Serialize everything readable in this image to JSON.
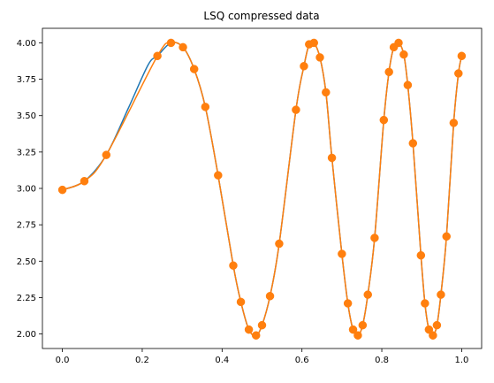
{
  "chart_data": {
    "type": "line",
    "title": "LSQ compressed data",
    "xlabel": "",
    "ylabel": "",
    "xlim": [
      -0.05,
      1.05
    ],
    "ylim": [
      1.9,
      4.1
    ],
    "x_ticks": [
      0.0,
      0.2,
      0.4,
      0.6,
      0.8,
      1.0
    ],
    "x_tick_labels": [
      "0.0",
      "0.2",
      "0.4",
      "0.6",
      "0.8",
      "1.0"
    ],
    "y_ticks": [
      2.0,
      2.25,
      2.5,
      2.75,
      3.0,
      3.25,
      3.5,
      3.75,
      4.0
    ],
    "y_tick_labels": [
      "2.00",
      "2.25",
      "2.50",
      "2.75",
      "3.00",
      "3.25",
      "3.50",
      "3.75",
      "4.00"
    ],
    "grid": false,
    "legend": "none",
    "series": [
      {
        "style": "line",
        "color": "#1f77b4",
        "x": [
          0.0,
          0.055,
          0.11,
          0.165,
          0.215,
          0.238,
          0.272,
          0.302,
          0.33,
          0.358,
          0.39,
          0.428,
          0.447,
          0.467,
          0.485,
          0.5,
          0.52,
          0.543,
          0.585,
          0.605,
          0.618,
          0.63,
          0.645,
          0.66,
          0.675,
          0.7,
          0.715,
          0.728,
          0.74,
          0.752,
          0.765,
          0.782,
          0.805,
          0.818,
          0.83,
          0.842,
          0.855,
          0.865,
          0.878,
          0.898,
          0.908,
          0.918,
          0.928,
          0.938,
          0.948,
          0.962,
          0.98,
          0.992,
          1.0
        ],
        "y": [
          2.99,
          3.05,
          3.23,
          3.55,
          3.85,
          3.91,
          4.0,
          3.97,
          3.82,
          3.56,
          3.09,
          2.47,
          2.22,
          2.03,
          1.99,
          2.06,
          2.26,
          2.62,
          3.54,
          3.84,
          3.99,
          4.0,
          3.9,
          3.66,
          3.21,
          2.55,
          2.21,
          2.03,
          1.99,
          2.06,
          2.27,
          2.66,
          3.47,
          3.8,
          3.97,
          4.0,
          3.92,
          3.71,
          3.31,
          2.54,
          2.21,
          2.03,
          1.99,
          2.06,
          2.27,
          2.67,
          3.45,
          3.79,
          3.91
        ]
      },
      {
        "style": "line+markers",
        "color": "#ff7f0e",
        "x": [
          0.0,
          0.055,
          0.11,
          0.238,
          0.272,
          0.302,
          0.33,
          0.358,
          0.39,
          0.428,
          0.447,
          0.467,
          0.485,
          0.5,
          0.52,
          0.543,
          0.585,
          0.605,
          0.618,
          0.63,
          0.645,
          0.66,
          0.675,
          0.7,
          0.715,
          0.728,
          0.74,
          0.752,
          0.765,
          0.782,
          0.805,
          0.818,
          0.83,
          0.842,
          0.855,
          0.865,
          0.878,
          0.898,
          0.908,
          0.918,
          0.928,
          0.938,
          0.948,
          0.962,
          0.98,
          0.992,
          1.0
        ],
        "y": [
          2.99,
          3.05,
          3.23,
          3.91,
          4.0,
          3.97,
          3.82,
          3.56,
          3.09,
          2.47,
          2.22,
          2.03,
          1.99,
          2.06,
          2.26,
          2.62,
          3.54,
          3.84,
          3.99,
          4.0,
          3.9,
          3.66,
          3.21,
          2.55,
          2.21,
          2.03,
          1.99,
          2.06,
          2.27,
          2.66,
          3.47,
          3.8,
          3.97,
          4.0,
          3.92,
          3.71,
          3.31,
          2.54,
          2.21,
          2.03,
          1.99,
          2.06,
          2.27,
          2.67,
          3.45,
          3.79,
          3.91
        ]
      }
    ]
  }
}
